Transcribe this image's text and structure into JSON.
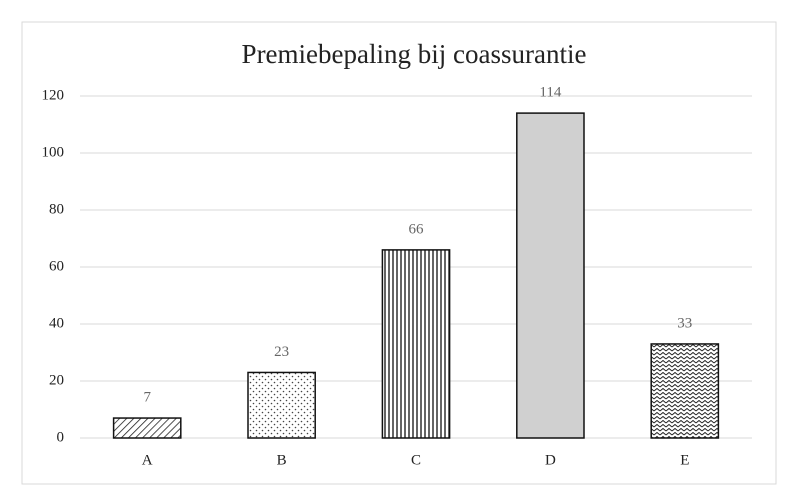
{
  "chart_data": {
    "type": "bar",
    "title": "Premiebepaling bij coassurantie",
    "categories": [
      "A",
      "B",
      "C",
      "D",
      "E"
    ],
    "values": [
      7,
      23,
      66,
      114,
      33
    ],
    "ylim": [
      0,
      120
    ],
    "yticks": [
      0,
      20,
      40,
      60,
      80,
      100,
      120
    ],
    "grid": true
  }
}
